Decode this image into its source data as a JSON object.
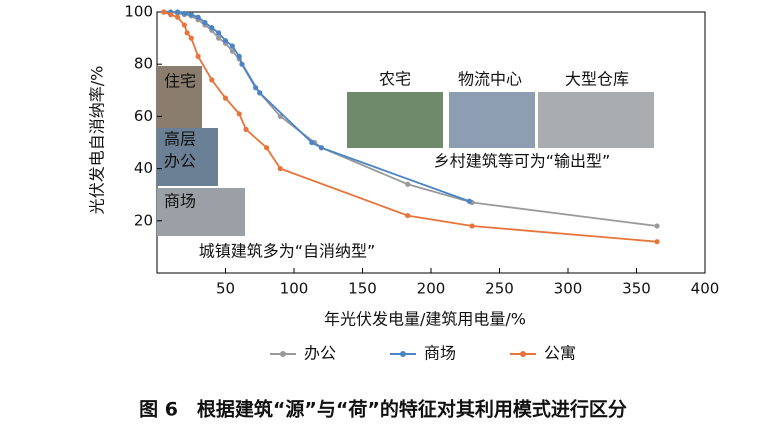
{
  "chart_data": {
    "type": "line",
    "xlabel": "年光伏发电量/建筑用电量/%",
    "ylabel": "光伏发电自消纳率/%",
    "caption": "图 6　根据建筑“源”与“荷”的特征对其利用模式进行区分",
    "xlim": [
      0,
      400
    ],
    "xticks": [
      50,
      100,
      150,
      200,
      250,
      300,
      350,
      400
    ],
    "ylim": [
      0,
      100
    ],
    "yticks": [
      20,
      40,
      60,
      80,
      100
    ],
    "legend": "bottom",
    "series": [
      {
        "name": "办公",
        "color": "#9a9a9a",
        "x": [
          5,
          10,
          15,
          20,
          25,
          30,
          35,
          40,
          45,
          50,
          55,
          60,
          75,
          90,
          115,
          120,
          183,
          230,
          365
        ],
        "values": [
          100,
          100,
          99.5,
          99,
          98.5,
          97,
          95,
          93,
          90,
          88,
          85,
          82,
          69,
          60,
          50,
          48,
          34,
          27,
          18
        ]
      },
      {
        "name": "商场",
        "color": "#4a84c4",
        "x": [
          5,
          10,
          15,
          20,
          25,
          30,
          35,
          40,
          45,
          50,
          55,
          60,
          62,
          72,
          75,
          113,
          120,
          228
        ],
        "values": [
          100,
          100,
          100,
          99.5,
          99,
          98,
          96,
          94,
          92,
          89,
          87,
          83,
          80,
          71,
          69,
          50,
          48,
          27.5
        ]
      },
      {
        "name": "公寓",
        "color": "#e8743b",
        "x": [
          5,
          10,
          15,
          20,
          22,
          25,
          30,
          40,
          50,
          60,
          65,
          80,
          90,
          183,
          230,
          365
        ],
        "values": [
          100,
          99,
          98,
          95,
          92,
          90,
          83,
          74,
          67,
          61,
          55,
          48,
          40,
          22,
          18,
          12
        ]
      }
    ],
    "photo_labels": [
      "住宅",
      "高层",
      "办公",
      "商场",
      "农宅",
      "物流中心",
      "大型仓库"
    ],
    "annotations": [
      "乡村建筑等可为“输出型”",
      "城镇建筑多为“自消纳型”"
    ]
  }
}
